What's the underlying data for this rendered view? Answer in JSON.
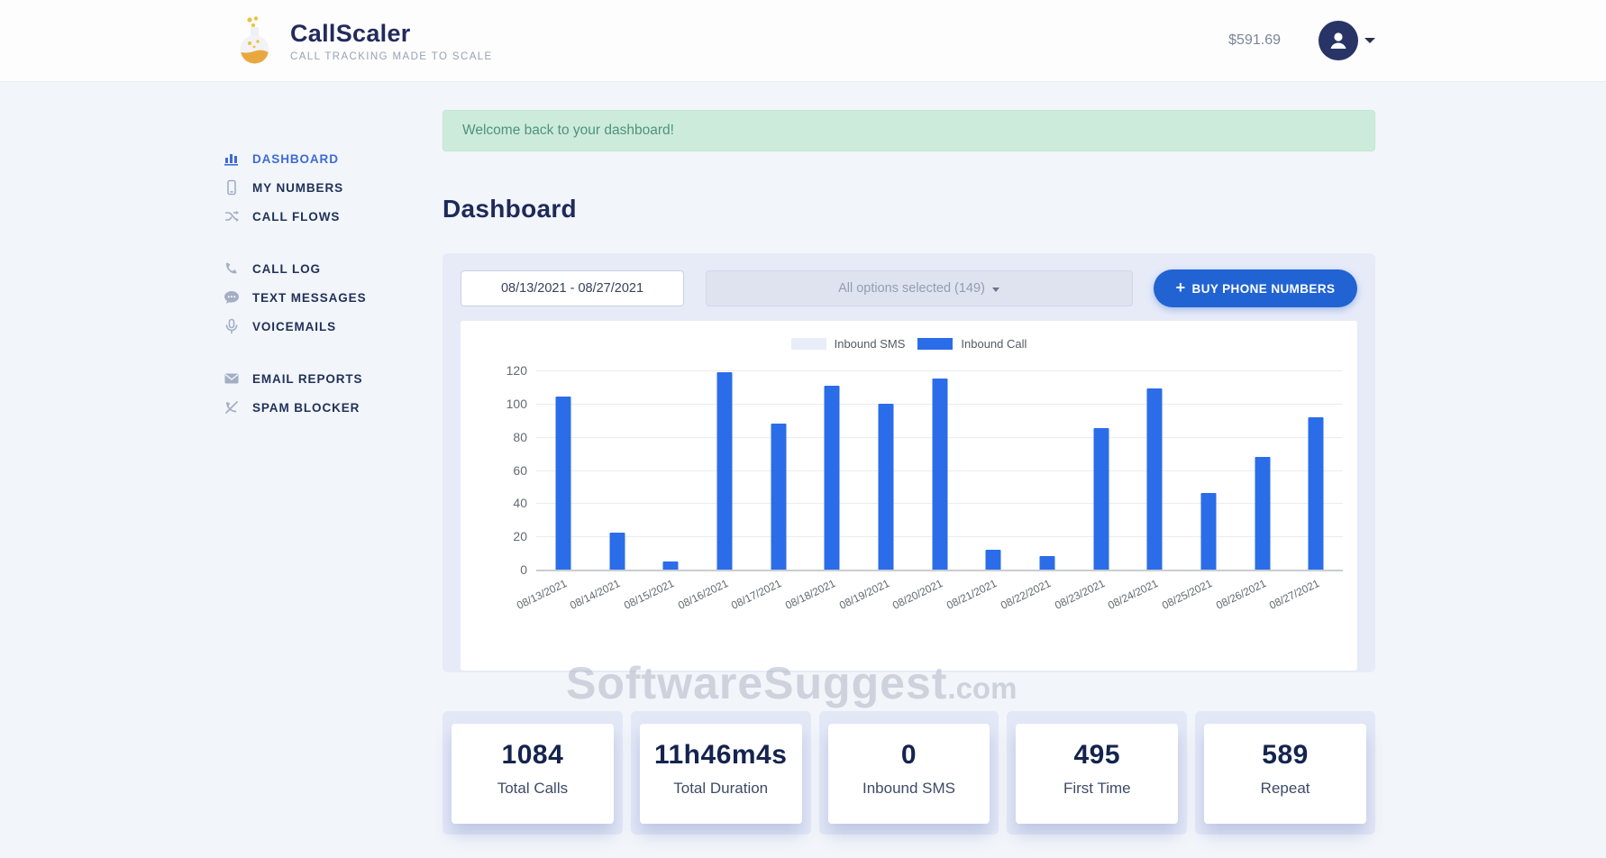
{
  "header": {
    "brand": {
      "name": "CallScaler",
      "tagline": "CALL TRACKING MADE TO SCALE"
    },
    "balance": "$591.69"
  },
  "sidebar": {
    "groups": [
      {
        "items": [
          {
            "label": "DASHBOARD",
            "icon": "bar-chart-icon",
            "active": true
          },
          {
            "label": "MY NUMBERS",
            "icon": "mobile-icon",
            "active": false
          },
          {
            "label": "CALL FLOWS",
            "icon": "shuffle-icon",
            "active": false
          }
        ]
      },
      {
        "items": [
          {
            "label": "CALL LOG",
            "icon": "phone-icon",
            "active": false
          },
          {
            "label": "TEXT MESSAGES",
            "icon": "chat-bubble-icon",
            "active": false
          },
          {
            "label": "VOICEMAILS",
            "icon": "microphone-icon",
            "active": false
          }
        ]
      },
      {
        "items": [
          {
            "label": "EMAIL REPORTS",
            "icon": "envelope-icon",
            "active": false
          },
          {
            "label": "SPAM BLOCKER",
            "icon": "phone-slash-icon",
            "active": false
          }
        ]
      }
    ]
  },
  "banner": {
    "message": "Welcome back to your dashboard!"
  },
  "page": {
    "title": "Dashboard"
  },
  "filters": {
    "date_range": "08/13/2021 - 08/27/2021",
    "numbers_select": "All options selected (149)",
    "buy_button": {
      "plus": "+",
      "label": "BUY PHONE NUMBERS"
    }
  },
  "chart_data": {
    "type": "bar",
    "title": "",
    "xlabel": "",
    "ylabel": "",
    "categories": [
      "08/13/2021",
      "08/14/2021",
      "08/15/2021",
      "08/16/2021",
      "08/17/2021",
      "08/18/2021",
      "08/19/2021",
      "08/20/2021",
      "08/21/2021",
      "08/22/2021",
      "08/23/2021",
      "08/24/2021",
      "08/25/2021",
      "08/26/2021",
      "08/27/2021"
    ],
    "series": [
      {
        "name": "Inbound SMS",
        "color": "#e9edf9",
        "values": [
          0,
          0,
          0,
          0,
          0,
          0,
          0,
          0,
          0,
          0,
          0,
          0,
          0,
          0,
          0
        ]
      },
      {
        "name": "Inbound Call",
        "color": "#2b6ce9",
        "values": [
          104,
          22,
          5,
          119,
          88,
          111,
          100,
          115,
          12,
          8,
          85,
          109,
          46,
          68,
          92
        ]
      }
    ],
    "ylim": [
      0,
      120
    ],
    "y_ticks": [
      0,
      20,
      40,
      60,
      80,
      100,
      120
    ],
    "grid": true,
    "legend_position": "top-center"
  },
  "stats": [
    {
      "value": "1084",
      "label": "Total Calls"
    },
    {
      "value": "11h46m4s",
      "label": "Total Duration"
    },
    {
      "value": "0",
      "label": "Inbound SMS"
    },
    {
      "value": "495",
      "label": "First Time"
    },
    {
      "value": "589",
      "label": "Repeat"
    }
  ],
  "watermark": {
    "text": "SoftwareSuggest",
    "suffix": ".com"
  },
  "colors": {
    "accent_blue": "#2163d2",
    "bar_blue": "#2b6ce9",
    "active_nav": "#3e6bd6",
    "banner_bg": "#cdebdb",
    "banner_text": "#4d9478",
    "panel_bg": "#e7ebf8",
    "navy": "#1e2a5a"
  }
}
